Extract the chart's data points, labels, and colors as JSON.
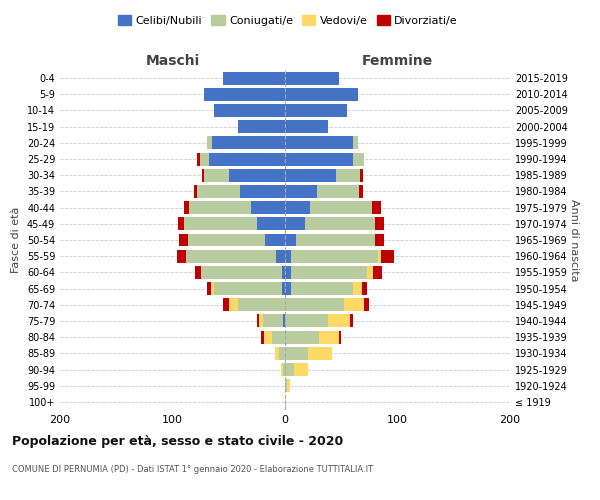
{
  "age_groups": [
    "100+",
    "95-99",
    "90-94",
    "85-89",
    "80-84",
    "75-79",
    "70-74",
    "65-69",
    "60-64",
    "55-59",
    "50-54",
    "45-49",
    "40-44",
    "35-39",
    "30-34",
    "25-29",
    "20-24",
    "15-19",
    "10-14",
    "5-9",
    "0-4"
  ],
  "birth_years": [
    "≤ 1919",
    "1920-1924",
    "1925-1929",
    "1930-1934",
    "1935-1939",
    "1940-1944",
    "1945-1949",
    "1950-1954",
    "1955-1959",
    "1960-1964",
    "1965-1969",
    "1970-1974",
    "1975-1979",
    "1980-1984",
    "1985-1989",
    "1990-1994",
    "1995-1999",
    "2000-2004",
    "2005-2009",
    "2010-2014",
    "2015-2019"
  ],
  "males": {
    "single": [
      0,
      0,
      0,
      0,
      0,
      2,
      0,
      3,
      3,
      8,
      18,
      25,
      30,
      40,
      50,
      68,
      65,
      42,
      63,
      72,
      55
    ],
    "married": [
      0,
      0,
      2,
      5,
      12,
      18,
      42,
      60,
      72,
      80,
      68,
      65,
      55,
      38,
      22,
      8,
      4,
      0,
      0,
      0,
      0
    ],
    "widowed": [
      0,
      0,
      2,
      4,
      7,
      3,
      8,
      3,
      0,
      0,
      0,
      0,
      0,
      0,
      0,
      0,
      0,
      0,
      0,
      0,
      0
    ],
    "divorced": [
      0,
      0,
      0,
      0,
      2,
      2,
      5,
      3,
      5,
      8,
      8,
      5,
      5,
      3,
      2,
      2,
      0,
      0,
      0,
      0,
      0
    ]
  },
  "females": {
    "single": [
      0,
      0,
      0,
      0,
      0,
      0,
      0,
      5,
      5,
      5,
      10,
      18,
      22,
      28,
      45,
      60,
      60,
      38,
      55,
      65,
      48
    ],
    "married": [
      0,
      2,
      8,
      20,
      30,
      38,
      52,
      55,
      68,
      78,
      70,
      62,
      55,
      38,
      22,
      10,
      5,
      0,
      0,
      0,
      0
    ],
    "widowed": [
      1,
      2,
      12,
      22,
      18,
      20,
      18,
      8,
      5,
      2,
      0,
      0,
      0,
      0,
      0,
      0,
      0,
      0,
      0,
      0,
      0
    ],
    "divorced": [
      0,
      0,
      0,
      0,
      2,
      2,
      5,
      5,
      8,
      12,
      8,
      8,
      8,
      3,
      2,
      0,
      0,
      0,
      0,
      0,
      0
    ]
  },
  "colors": {
    "single": "#4472c4",
    "married": "#b8cca0",
    "widowed": "#ffd966",
    "divorced": "#c00000"
  },
  "legend_labels": [
    "Celibi/Nubili",
    "Coniugati/e",
    "Vedovi/e",
    "Divorziati/e"
  ],
  "title": "Popolazione per età, sesso e stato civile - 2020",
  "subtitle": "COMUNE DI PERNUMIA (PD) - Dati ISTAT 1° gennaio 2020 - Elaborazione TUTTITALIA.IT",
  "xlabel_left": "Maschi",
  "xlabel_right": "Femmine",
  "ylabel_left": "Fasce di età",
  "ylabel_right": "Anni di nascita",
  "xlim": 200,
  "bg_color": "#ffffff",
  "grid_color": "#cccccc"
}
